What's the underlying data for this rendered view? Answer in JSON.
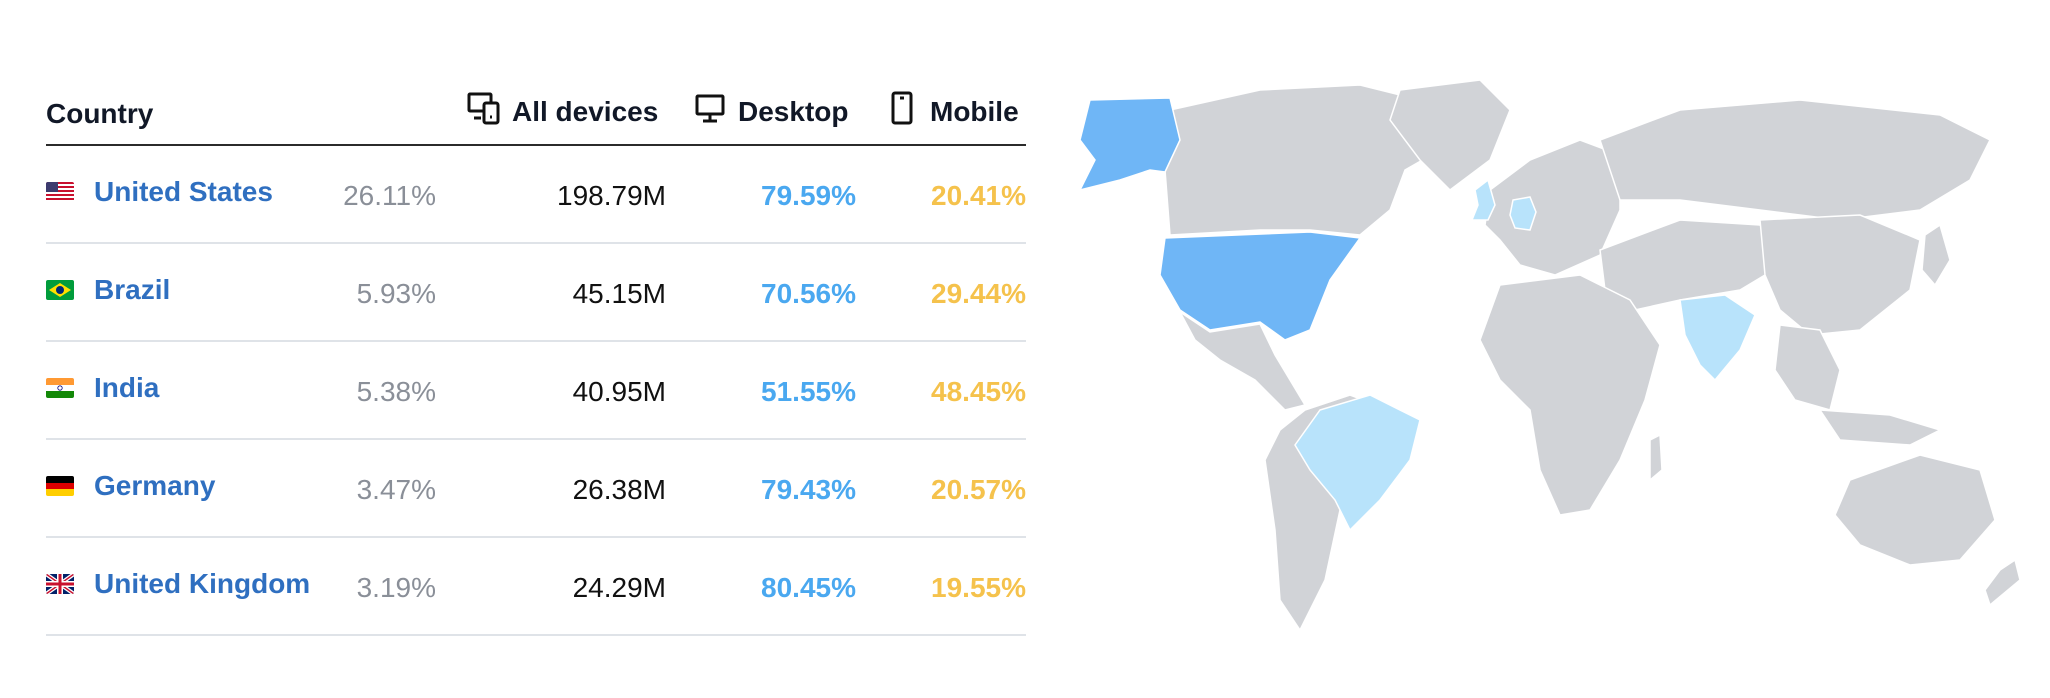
{
  "table": {
    "header": {
      "country": "Country",
      "all_devices": "All devices",
      "desktop": "Desktop",
      "mobile": "Mobile"
    },
    "rows": [
      {
        "country": "United States",
        "share": "26.11%",
        "visits": "198.79M",
        "desktop": "79.59%",
        "mobile": "20.41%"
      },
      {
        "country": "Brazil",
        "share": "5.93%",
        "visits": "45.15M",
        "desktop": "70.56%",
        "mobile": "29.44%"
      },
      {
        "country": "India",
        "share": "5.38%",
        "visits": "40.95M",
        "desktop": "51.55%",
        "mobile": "48.45%"
      },
      {
        "country": "Germany",
        "share": "3.47%",
        "visits": "26.38M",
        "desktop": "79.43%",
        "mobile": "20.57%"
      },
      {
        "country": "United Kingdom",
        "share": "3.19%",
        "visits": "24.29M",
        "desktop": "80.45%",
        "mobile": "19.55%"
      }
    ]
  },
  "colors": {
    "link": "#2f6fc0",
    "desktop": "#4aa8f0",
    "mobile": "#f5c24c",
    "map_land": "#d1d3d7",
    "map_highlight_strong": "#6fb6f6",
    "map_highlight_light": "#b8e3fb"
  },
  "map": {
    "highlighted_strong": [
      "United States"
    ],
    "highlighted_light": [
      "Brazil",
      "India",
      "Germany",
      "United Kingdom"
    ]
  }
}
